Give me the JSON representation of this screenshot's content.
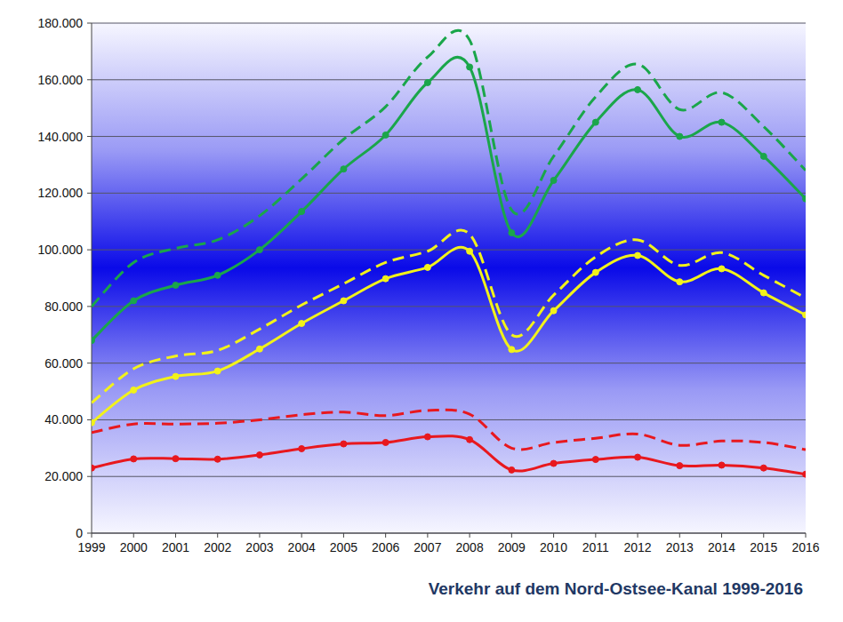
{
  "chart_data": {
    "type": "line",
    "title": "Verkehr auf dem Nord-Ostsee-Kanal 1999-2016",
    "categories": [
      "1999",
      "2000",
      "2001",
      "2002",
      "2003",
      "2004",
      "2005",
      "2006",
      "2007",
      "2008",
      "2009",
      "2010",
      "2011",
      "2012",
      "2013",
      "2014",
      "2015",
      "2016"
    ],
    "ylim": [
      0,
      180000
    ],
    "yticks": [
      0,
      {
        "value": 20000,
        "label": "20.000"
      },
      {
        "value": 40000,
        "label": "40.000"
      },
      {
        "value": 60000,
        "label": "60.000"
      },
      {
        "value": 80000,
        "label": "80.000"
      },
      {
        "value": 100000,
        "label": "100.000"
      },
      {
        "value": 120000,
        "label": "120.000"
      },
      {
        "value": 140000,
        "label": "140.000"
      },
      {
        "value": 160000,
        "label": "160.000"
      },
      {
        "value": 180000,
        "label": "180.000"
      }
    ],
    "grid": true,
    "series": [
      {
        "color": "#1aa64a",
        "line_style": "dashed",
        "marker": "none",
        "values": [
          80000,
          95500,
          100500,
          103500,
          112000,
          125000,
          139000,
          150500,
          168000,
          174000,
          114000,
          133000,
          154000,
          165500,
          149500,
          155500,
          143500,
          128000
        ]
      },
      {
        "color": "#1aa64a",
        "line_style": "solid",
        "marker": "circle",
        "values": [
          68000,
          82000,
          87500,
          91000,
          100000,
          113500,
          128500,
          140500,
          159000,
          164500,
          106000,
          124500,
          145000,
          156500,
          140000,
          145000,
          133000,
          118000
        ]
      },
      {
        "color": "#f2f21a",
        "line_style": "dashed",
        "marker": "none",
        "values": [
          46000,
          58000,
          62500,
          64500,
          72000,
          80500,
          88000,
          95500,
          99500,
          105500,
          70000,
          84000,
          97500,
          103500,
          94500,
          99000,
          91000,
          83000
        ]
      },
      {
        "color": "#f2f21a",
        "line_style": "solid",
        "marker": "circle",
        "values": [
          39000,
          50500,
          55300,
          57200,
          65000,
          74000,
          82000,
          89800,
          93800,
          99500,
          64800,
          78500,
          92000,
          98000,
          88700,
          93300,
          84800,
          77000
        ]
      },
      {
        "color": "#e8181e",
        "line_style": "dashed",
        "marker": "none",
        "values": [
          35500,
          38500,
          38500,
          38800,
          40000,
          41800,
          42700,
          41500,
          43300,
          42000,
          30000,
          32000,
          33500,
          35000,
          31000,
          32500,
          32000,
          29500
        ]
      },
      {
        "color": "#e8181e",
        "line_style": "solid",
        "marker": "circle",
        "values": [
          23000,
          26200,
          26300,
          26100,
          27600,
          29800,
          31500,
          32000,
          34000,
          33000,
          22300,
          24600,
          26000,
          26800,
          23800,
          24000,
          23000,
          20800
        ]
      }
    ]
  }
}
